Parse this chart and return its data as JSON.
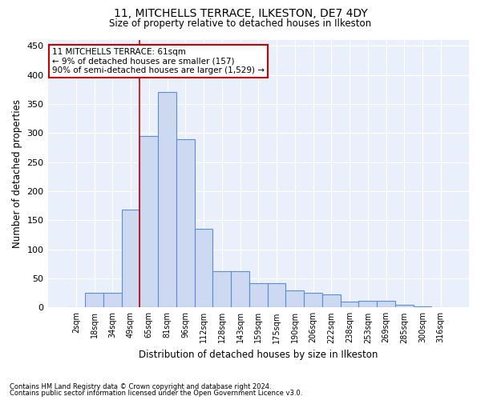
{
  "title_line1": "11, MITCHELLS TERRACE, ILKESTON, DE7 4DY",
  "title_line2": "Size of property relative to detached houses in Ilkeston",
  "xlabel": "Distribution of detached houses by size in Ilkeston",
  "ylabel": "Number of detached properties",
  "footnote_line1": "Contains HM Land Registry data © Crown copyright and database right 2024.",
  "footnote_line2": "Contains public sector information licensed under the Open Government Licence v3.0.",
  "annotation_line1": "11 MITCHELLS TERRACE: 61sqm",
  "annotation_line2": "← 9% of detached houses are smaller (157)",
  "annotation_line3": "90% of semi-detached houses are larger (1,529) →",
  "bar_color": "#ccd9f0",
  "bar_edge_color": "#5b8dd9",
  "annotation_box_color": "#cc0000",
  "vline_color": "#cc0000",
  "background_color": "#eaf0fb",
  "categories": [
    "2sqm",
    "18sqm",
    "34sqm",
    "49sqm",
    "65sqm",
    "81sqm",
    "96sqm",
    "112sqm",
    "128sqm",
    "143sqm",
    "159sqm",
    "175sqm",
    "190sqm",
    "206sqm",
    "222sqm",
    "238sqm",
    "253sqm",
    "269sqm",
    "285sqm",
    "300sqm",
    "316sqm"
  ],
  "values": [
    1,
    25,
    25,
    168,
    295,
    370,
    290,
    135,
    62,
    62,
    42,
    42,
    30,
    25,
    22,
    10,
    12,
    12,
    5,
    2,
    1
  ],
  "ylim": [
    0,
    460
  ],
  "yticks": [
    0,
    50,
    100,
    150,
    200,
    250,
    300,
    350,
    400,
    450
  ],
  "vline_x_index": 3.5,
  "fig_width": 6.0,
  "fig_height": 5.0,
  "dpi": 100
}
